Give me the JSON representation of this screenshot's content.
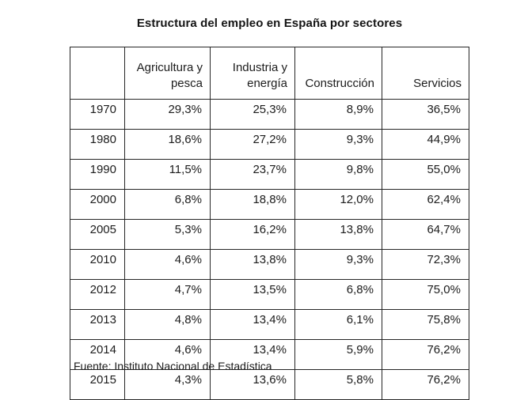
{
  "title": "Estructura del empleo en España por sectores",
  "source": "Fuente: Instituto Nacional de Estadística",
  "colors": {
    "background": "#ffffff",
    "text": "#1c1c1c",
    "border": "#262626"
  },
  "table": {
    "headers": [
      "",
      "Agricultura y pesca",
      "Industria y energía",
      "Construcción",
      "Servicios"
    ],
    "rows": [
      [
        "1970",
        "29,3%",
        "25,3%",
        "8,9%",
        "36,5%"
      ],
      [
        "1980",
        "18,6%",
        "27,2%",
        "9,3%",
        "44,9%"
      ],
      [
        "1990",
        "11,5%",
        "23,7%",
        "9,8%",
        "55,0%"
      ],
      [
        "2000",
        "6,8%",
        "18,8%",
        "12,0%",
        "62,4%"
      ],
      [
        "2005",
        "5,3%",
        "16,2%",
        "13,8%",
        "64,7%"
      ],
      [
        "2010",
        "4,6%",
        "13,8%",
        "9,3%",
        "72,3%"
      ],
      [
        "2012",
        "4,7%",
        "13,5%",
        "6,8%",
        "75,0%"
      ],
      [
        "2013",
        "4,8%",
        "13,4%",
        "6,1%",
        "75,8%"
      ],
      [
        "2014",
        "4,6%",
        "13,4%",
        "5,9%",
        "76,2%"
      ],
      [
        "2015",
        "4,3%",
        "13,6%",
        "5,8%",
        "76,2%"
      ]
    ]
  }
}
